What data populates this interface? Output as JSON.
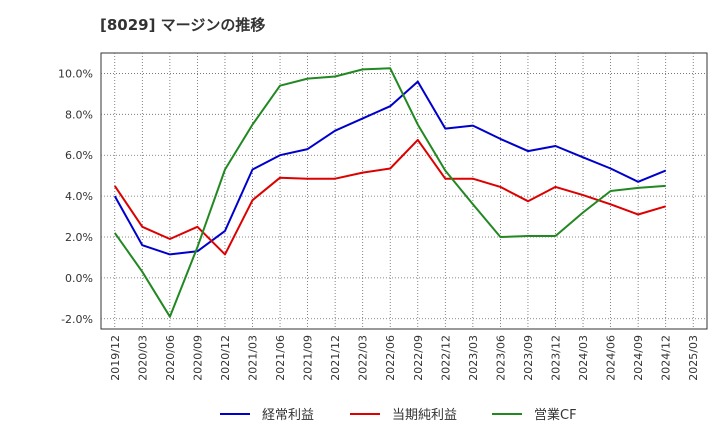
{
  "chart_data": {
    "type": "line",
    "title": "[8029]  マージンの推移",
    "xlabel": "",
    "ylabel": "",
    "ylim": [
      -2.5,
      11.0
    ],
    "y_ticks": [
      "-2.0%",
      "0.0%",
      "2.0%",
      "4.0%",
      "6.0%",
      "8.0%",
      "10.0%"
    ],
    "y_tick_values": [
      -2,
      0,
      2,
      4,
      6,
      8,
      10
    ],
    "categories": [
      "2019/12",
      "2020/03",
      "2020/06",
      "2020/09",
      "2020/12",
      "2021/03",
      "2021/06",
      "2021/09",
      "2021/12",
      "2022/03",
      "2022/06",
      "2022/09",
      "2022/12",
      "2023/03",
      "2023/06",
      "2023/09",
      "2023/12",
      "2024/03",
      "2024/06",
      "2024/09",
      "2024/12",
      "2025/03"
    ],
    "grid": true,
    "legend_position": "bottom",
    "series": [
      {
        "name": "経常利益",
        "color": "#0000cc",
        "values": [
          4.0,
          1.6,
          1.15,
          1.3,
          2.3,
          5.3,
          6.0,
          6.3,
          7.2,
          7.8,
          8.4,
          9.6,
          7.3,
          7.45,
          6.8,
          6.2,
          6.45,
          5.9,
          5.35,
          4.7,
          5.25,
          null
        ]
      },
      {
        "name": "当期純利益",
        "color": "#dd0000",
        "values": [
          4.5,
          2.5,
          1.9,
          2.5,
          1.15,
          3.8,
          4.9,
          4.85,
          4.85,
          5.15,
          5.35,
          6.75,
          4.85,
          4.85,
          4.45,
          3.75,
          4.45,
          4.05,
          3.6,
          3.1,
          3.5,
          null
        ]
      },
      {
        "name": "営業CF",
        "color": "#228822",
        "values": [
          2.2,
          0.3,
          -1.9,
          1.5,
          5.3,
          7.5,
          9.4,
          9.75,
          9.85,
          10.2,
          10.25,
          7.5,
          5.25,
          3.6,
          2.0,
          2.05,
          2.05,
          3.2,
          4.25,
          4.4,
          4.5,
          null
        ]
      }
    ]
  }
}
